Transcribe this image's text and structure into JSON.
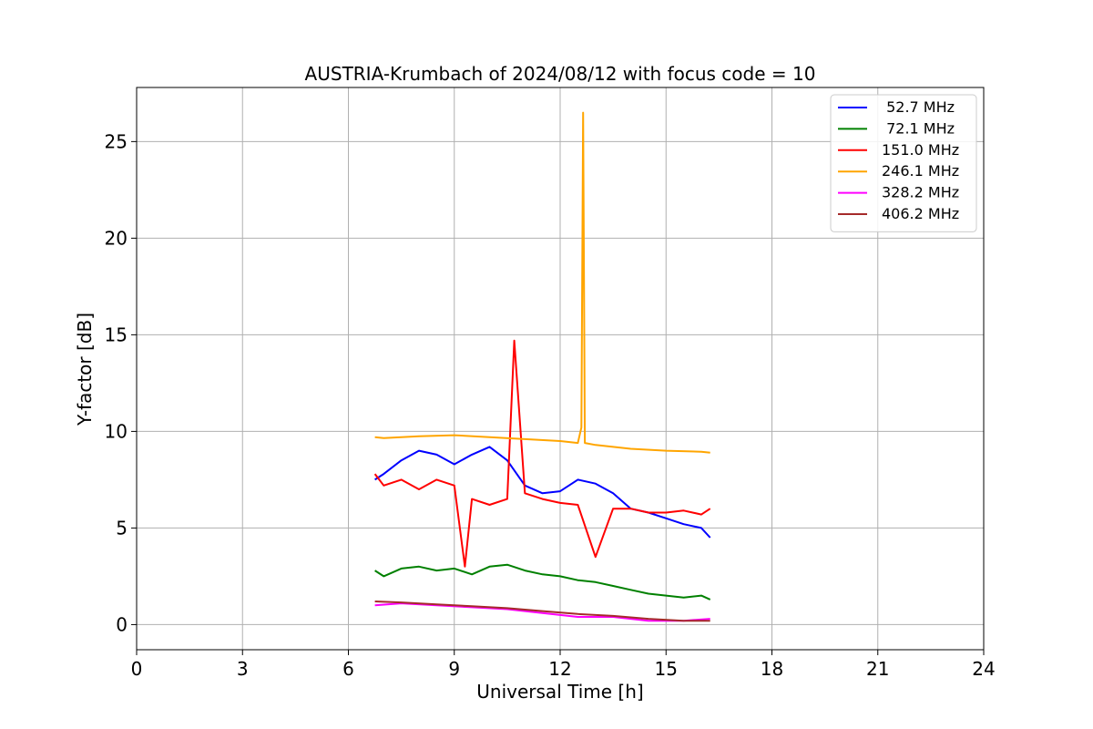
{
  "chart_data": {
    "type": "line",
    "title": "AUSTRIA-Krumbach of 2024/08/12 with focus code = 10",
    "xlabel": "Universal Time [h]",
    "ylabel": "Y-factor [dB]",
    "xlim": [
      0,
      24
    ],
    "ylim": [
      -1.3,
      27.8
    ],
    "xticks": [
      0,
      3,
      6,
      9,
      12,
      15,
      18,
      21,
      24
    ],
    "yticks": [
      0,
      5,
      10,
      15,
      20,
      25
    ],
    "grid": true,
    "legend_position": "top-right",
    "series": [
      {
        "name": " 52.7 MHz",
        "color": "#0000ff",
        "x": [
          6.75,
          7.0,
          7.5,
          8.0,
          8.5,
          9.0,
          9.5,
          10.0,
          10.5,
          11.0,
          11.5,
          12.0,
          12.5,
          13.0,
          13.5,
          14.0,
          14.5,
          15.0,
          15.5,
          16.0,
          16.25
        ],
        "y": [
          7.5,
          7.8,
          8.5,
          9.0,
          8.8,
          8.3,
          8.8,
          9.2,
          8.5,
          7.2,
          6.8,
          6.9,
          7.5,
          7.3,
          6.8,
          6.0,
          5.8,
          5.5,
          5.2,
          5.0,
          4.5
        ]
      },
      {
        "name": " 72.1 MHz",
        "color": "#008000",
        "x": [
          6.75,
          7.0,
          7.5,
          8.0,
          8.5,
          9.0,
          9.5,
          10.0,
          10.5,
          11.0,
          11.5,
          12.0,
          12.5,
          13.0,
          13.5,
          14.0,
          14.5,
          15.0,
          15.5,
          16.0,
          16.25
        ],
        "y": [
          2.8,
          2.5,
          2.9,
          3.0,
          2.8,
          2.9,
          2.6,
          3.0,
          3.1,
          2.8,
          2.6,
          2.5,
          2.3,
          2.2,
          2.0,
          1.8,
          1.6,
          1.5,
          1.4,
          1.5,
          1.3
        ]
      },
      {
        "name": "151.0 MHz",
        "color": "#ff0000",
        "x": [
          6.75,
          7.0,
          7.5,
          8.0,
          8.5,
          9.0,
          9.3,
          9.5,
          10.0,
          10.5,
          10.7,
          11.0,
          11.5,
          12.0,
          12.5,
          13.0,
          13.5,
          14.0,
          14.5,
          15.0,
          15.5,
          16.0,
          16.25
        ],
        "y": [
          7.8,
          7.2,
          7.5,
          7.0,
          7.5,
          7.2,
          3.0,
          6.5,
          6.2,
          6.5,
          14.7,
          6.8,
          6.5,
          6.3,
          6.2,
          3.5,
          6.0,
          6.0,
          5.8,
          5.8,
          5.9,
          5.7,
          6.0
        ]
      },
      {
        "name": "246.1 MHz",
        "color": "#ffa500",
        "x": [
          6.75,
          7.0,
          8.0,
          9.0,
          10.0,
          11.0,
          12.0,
          12.5,
          12.6,
          12.65,
          12.7,
          13.0,
          14.0,
          15.0,
          16.0,
          16.25
        ],
        "y": [
          9.7,
          9.65,
          9.75,
          9.8,
          9.7,
          9.6,
          9.5,
          9.4,
          10.2,
          26.5,
          9.4,
          9.3,
          9.1,
          9.0,
          8.95,
          8.9
        ]
      },
      {
        "name": "328.2 MHz",
        "color": "#ff00ff",
        "x": [
          6.75,
          7.5,
          8.5,
          9.5,
          10.5,
          11.5,
          12.5,
          13.5,
          14.5,
          15.5,
          16.25
        ],
        "y": [
          1.0,
          1.1,
          1.0,
          0.9,
          0.8,
          0.6,
          0.4,
          0.4,
          0.2,
          0.2,
          0.3
        ]
      },
      {
        "name": "406.2 MHz",
        "color": "#a52a2a",
        "x": [
          6.75,
          7.5,
          8.5,
          9.5,
          10.5,
          11.5,
          12.5,
          13.5,
          14.5,
          15.5,
          16.25
        ],
        "y": [
          1.2,
          1.15,
          1.05,
          0.95,
          0.85,
          0.7,
          0.55,
          0.45,
          0.3,
          0.2,
          0.2
        ]
      }
    ]
  }
}
